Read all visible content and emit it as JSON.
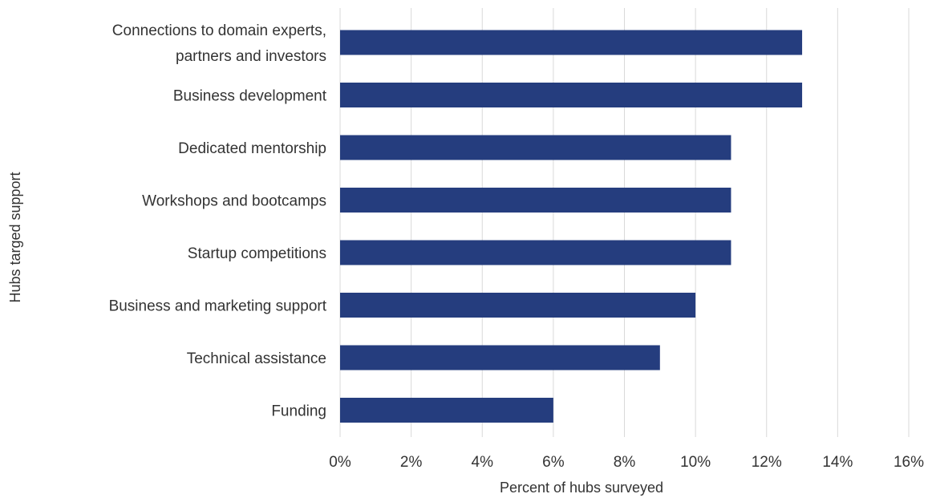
{
  "chart_data": {
    "type": "bar",
    "orientation": "horizontal",
    "title": "",
    "xlabel": "Percent of hubs surveyed",
    "ylabel": "Hubs targed support",
    "categories": [
      [
        "Connections to domain experts,",
        "partners and investors"
      ],
      [
        "Business development"
      ],
      [
        "Dedicated mentorship"
      ],
      [
        "Workshops and bootcamps"
      ],
      [
        "Startup competitions"
      ],
      [
        "Business and marketing support"
      ],
      [
        "Technical assistance"
      ],
      [
        "Funding"
      ]
    ],
    "values": [
      13,
      13,
      11,
      11,
      11,
      10,
      9,
      6
    ],
    "xlim": [
      0,
      16
    ],
    "xticks": [
      0,
      2,
      4,
      6,
      8,
      10,
      12,
      14,
      16
    ],
    "xtick_labels": [
      "0%",
      "2%",
      "4%",
      "6%",
      "8%",
      "10%",
      "12%",
      "14%",
      "16%"
    ],
    "grid": "vertical",
    "legend": "none",
    "bar_color": "#253d7e"
  }
}
